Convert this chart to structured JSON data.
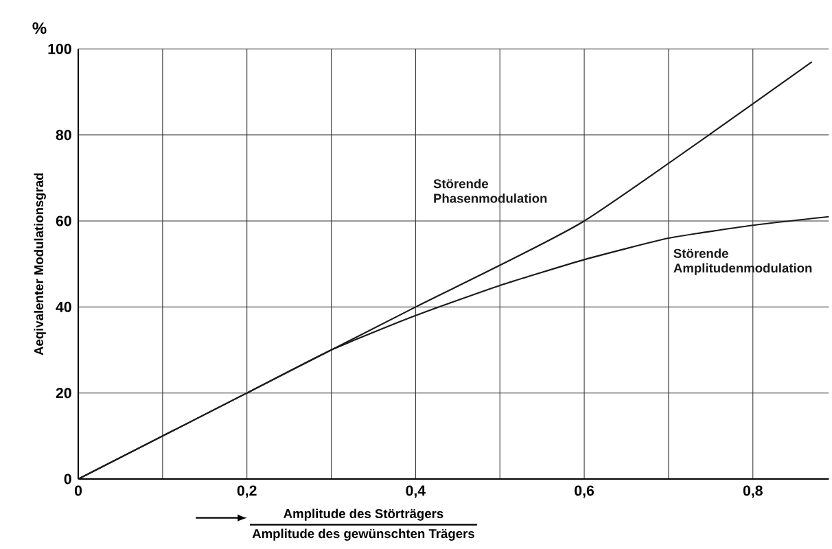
{
  "chart_data": {
    "type": "line",
    "xlabel": "Amplitude des Störträgers",
    "ylabel": "Aeqivalenter Modulationsgrad",
    "annotations": [
      "%",
      "Amplitude des gewünschten Trägers"
    ],
    "series": [
      {
        "name": "Störende Phasenmodulation",
        "color": "#1a1a1a",
        "x": [
          0,
          0.2,
          0.4,
          0.6,
          0.87
        ],
        "values": [
          0,
          20,
          40,
          60,
          97
        ]
      },
      {
        "name": "Störende Amplitudenmodulation",
        "color": "#1a1a1a",
        "x": [
          0,
          0.2,
          0.3,
          0.4,
          0.5,
          0.6,
          0.7,
          0.8,
          0.89
        ],
        "values": [
          0,
          20,
          30,
          38,
          45,
          51,
          56,
          59,
          61
        ]
      }
    ],
    "xlim": [
      0,
      0.89
    ],
    "ylim": [
      0,
      100
    ],
    "xticks": [
      0,
      {
        "value": 0.1,
        "label": null
      },
      {
        "value": 0.2,
        "label": "0,2"
      },
      {
        "value": 0.3,
        "label": null
      },
      {
        "value": 0.4,
        "label": "0,4"
      },
      {
        "value": 0.5,
        "label": null
      },
      {
        "value": 0.6,
        "label": "0,6"
      },
      {
        "value": 0.7,
        "label": null
      },
      {
        "value": 0.8,
        "label": "0,8"
      }
    ],
    "yticks": [
      0,
      20,
      40,
      60,
      80,
      100
    ],
    "grid": true,
    "marker": "none",
    "line_style": "solid",
    "legend": false
  }
}
